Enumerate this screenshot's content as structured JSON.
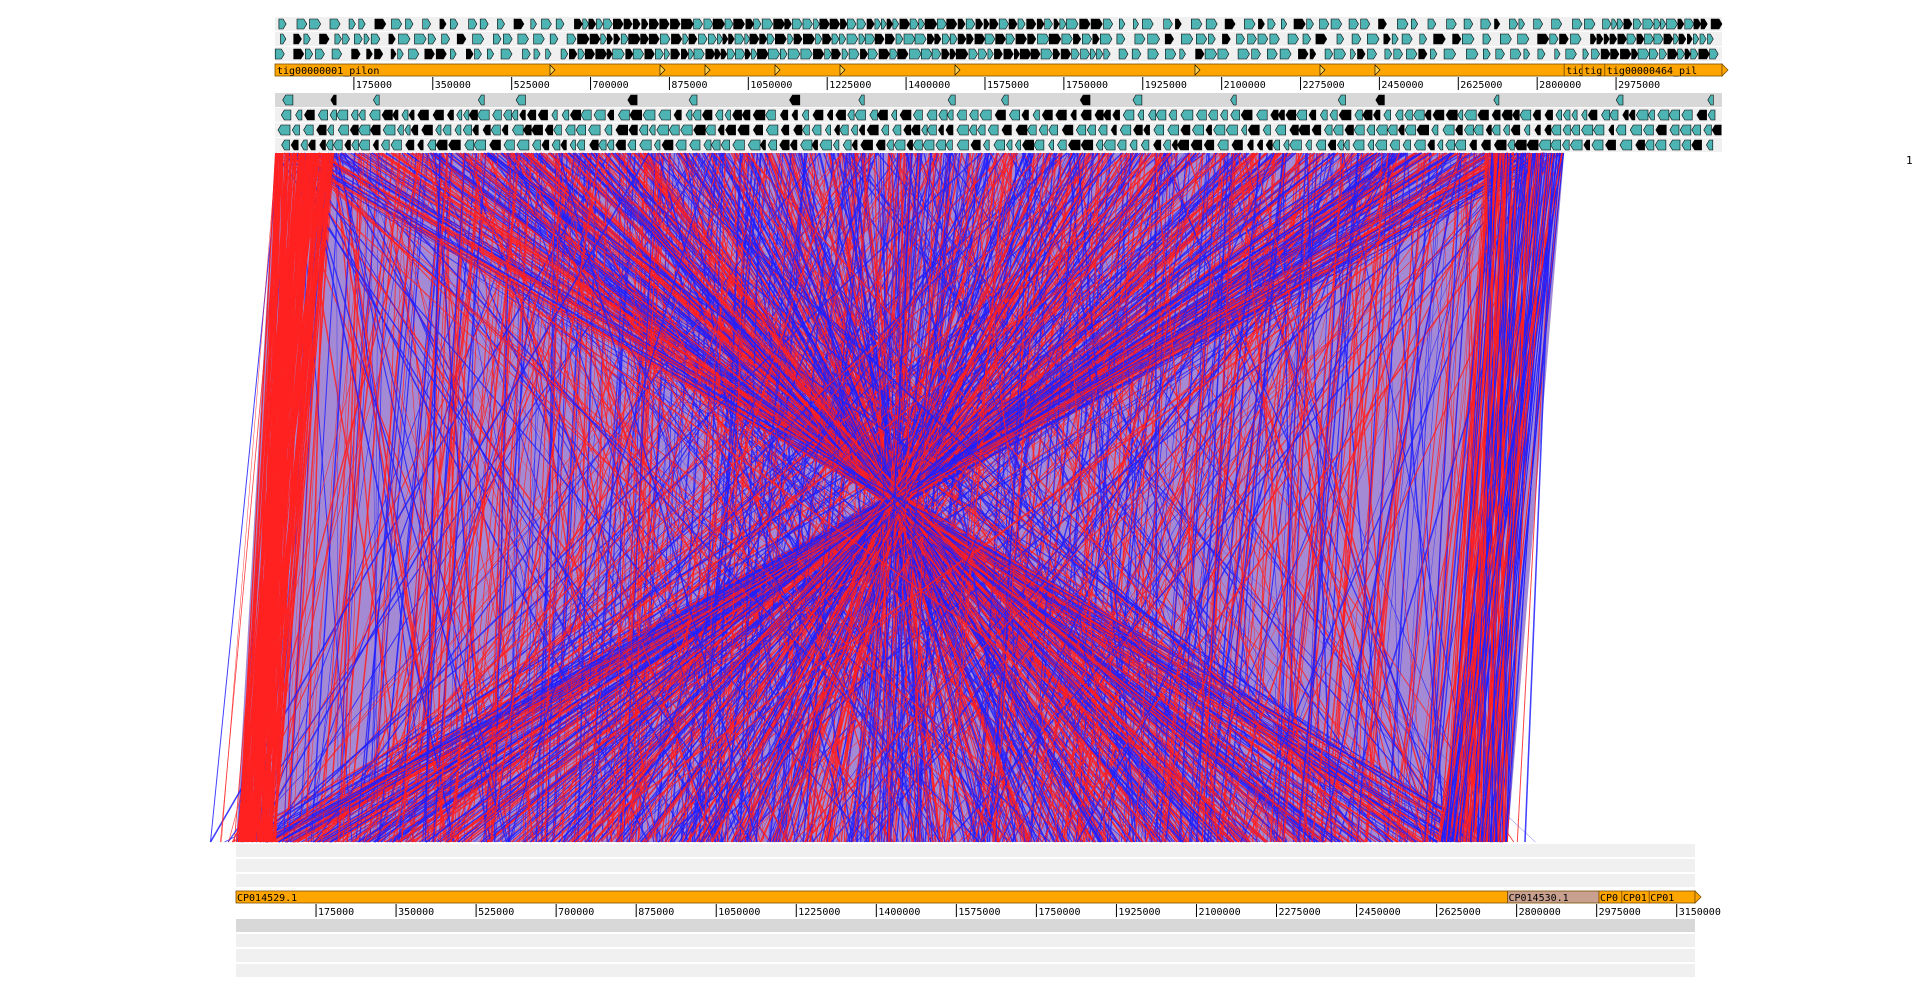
{
  "top_genome": {
    "contigs": [
      {
        "name": "tig00000001_pilon",
        "start": 0,
        "end": 2860000,
        "color": "#ffa500"
      },
      {
        "name": "tig",
        "start": 2860000,
        "end": 2900000,
        "color": "#ffa500"
      },
      {
        "name": "tig",
        "start": 2900000,
        "end": 2950000,
        "color": "#ffa500"
      },
      {
        "name": "tig00000464_pil",
        "start": 2950000,
        "end": 3210000,
        "color": "#ffa500"
      }
    ],
    "ticks": [
      "175000",
      "350000",
      "525000",
      "700000",
      "875000",
      "1050000",
      "1225000",
      "1400000",
      "1575000",
      "1750000",
      "1925000",
      "2100000",
      "2275000",
      "2450000",
      "2625000",
      "2800000",
      "2975000"
    ]
  },
  "bottom_genome": {
    "contigs": [
      {
        "name": "CP014529.1",
        "start": 0,
        "end": 2780000,
        "color": "#ffa500"
      },
      {
        "name": "CP014530.1",
        "start": 2780000,
        "end": 2980000,
        "color": "#c8a090"
      },
      {
        "name": "CP0",
        "start": 2980000,
        "end": 3030000,
        "color": "#ffa500"
      },
      {
        "name": "CP01",
        "start": 3030000,
        "end": 3090000,
        "color": "#ffa500"
      },
      {
        "name": "CP01",
        "start": 3090000,
        "end": 3190000,
        "color": "#ffa500"
      }
    ],
    "ticks": [
      "175000",
      "350000",
      "525000",
      "700000",
      "875000",
      "1050000",
      "1225000",
      "1400000",
      "1575000",
      "1750000",
      "1925000",
      "2100000",
      "2275000",
      "2450000",
      "2625000",
      "2800000",
      "2975000",
      "3150000"
    ]
  },
  "side_label": "1",
  "colors": {
    "forward_match": "#ff2020",
    "reverse_match": "#2020ff",
    "contig": "#ffa500",
    "feature_outline": "#000000",
    "feature_fill": "#4db3b3",
    "track_bg": "#f0f0f0"
  }
}
